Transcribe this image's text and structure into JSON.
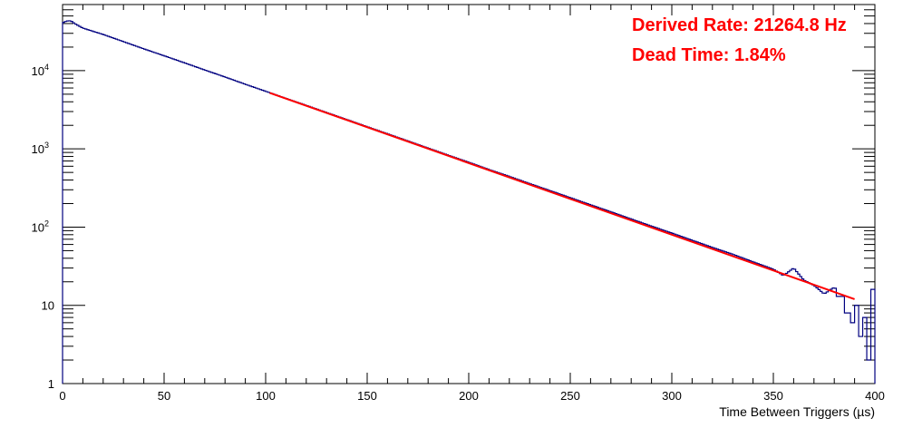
{
  "chart_data": {
    "type": "line",
    "title": "",
    "xlabel": "Time Between Triggers (µs)",
    "ylabel": "",
    "xlim": [
      0,
      400
    ],
    "ylim": [
      1,
      70000
    ],
    "y_scale": "log",
    "grid": false,
    "x_ticks": [
      0,
      50,
      100,
      150,
      200,
      250,
      300,
      350,
      400
    ],
    "y_ticks": [
      {
        "value": 1,
        "base": "1",
        "exp": ""
      },
      {
        "value": 10,
        "base": "10",
        "exp": ""
      },
      {
        "value": 100,
        "base": "10",
        "exp": "2"
      },
      {
        "value": 1000,
        "base": "10",
        "exp": "3"
      },
      {
        "value": 10000,
        "base": "10",
        "exp": "4"
      }
    ],
    "series": [
      {
        "kind": "histogram",
        "color": "#000080",
        "x": [
          0,
          2,
          4,
          6,
          10,
          20,
          30,
          40,
          50,
          60,
          70,
          80,
          90,
          100,
          110,
          120,
          130,
          140,
          150,
          160,
          170,
          180,
          190,
          200,
          210,
          220,
          230,
          240,
          250,
          260,
          270,
          280,
          290,
          300,
          310,
          320,
          330,
          340,
          350,
          355,
          360,
          365,
          370,
          375,
          380,
          385,
          388,
          390,
          392,
          394,
          396,
          398,
          399.5
        ],
        "y": [
          41000,
          43000,
          43500,
          40000,
          35000,
          29000,
          23500,
          19000,
          15500,
          12600,
          10200,
          8300,
          6700,
          5450,
          4420,
          3600,
          2920,
          2370,
          1920,
          1560,
          1265,
          1025,
          830,
          675,
          545,
          445,
          360,
          293,
          238,
          193,
          157,
          127,
          103,
          84,
          68,
          55,
          45,
          36,
          29,
          24,
          30,
          21,
          18,
          14,
          17,
          13,
          8,
          6,
          10,
          4,
          7,
          2,
          16
        ]
      },
      {
        "kind": "fit",
        "color": "#ff0000",
        "x": [
          102,
          390
        ],
        "y": [
          5200,
          12
        ]
      }
    ],
    "annotations": [
      {
        "text": "Derived Rate: 21264.8 Hz",
        "color": "#ff0000"
      },
      {
        "text": "Dead Time: 1.84%",
        "color": "#ff0000"
      }
    ]
  }
}
